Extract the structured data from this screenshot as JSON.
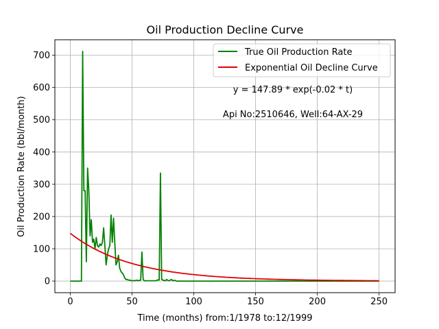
{
  "chart_data": {
    "type": "line",
    "title": "Oil Production Decline Curve",
    "xlabel": "Time (months) from:1/1978 to:12/1999",
    "ylabel": "Oil Production Rate (bbl/month)",
    "xlim": [
      -12.5,
      263
    ],
    "ylim": [
      -36,
      748
    ],
    "xticks": [
      0,
      50,
      100,
      150,
      200,
      250
    ],
    "yticks": [
      0,
      100,
      200,
      300,
      400,
      500,
      600,
      700
    ],
    "grid": true,
    "legend_position": "upper-right",
    "annotations": [
      "y = 147.89 * exp(-0.02 * t)",
      "Api No:2510646, Well:64-AX-29"
    ],
    "series": [
      {
        "name": "True Oil Production Rate",
        "color": "#008000",
        "x": [
          0,
          1,
          2,
          3,
          4,
          5,
          6,
          7,
          8,
          9,
          10,
          11,
          12,
          13,
          14,
          15,
          16,
          17,
          18,
          19,
          20,
          21,
          22,
          23,
          24,
          25,
          26,
          27,
          28,
          29,
          30,
          31,
          32,
          33,
          34,
          35,
          36,
          37,
          38,
          39,
          40,
          41,
          42,
          43,
          44,
          45,
          46,
          47,
          48,
          49,
          50,
          51,
          52,
          53,
          54,
          55,
          56,
          57,
          58,
          59,
          60,
          61,
          62,
          63,
          64,
          65,
          66,
          67,
          68,
          69,
          70,
          71,
          72,
          73,
          74,
          75,
          76,
          77,
          78,
          79,
          80,
          81,
          82,
          83,
          84,
          85,
          86,
          87,
          88,
          89,
          90,
          91,
          92,
          93,
          94,
          95,
          100,
          150,
          200,
          250
        ],
        "y": [
          0,
          0,
          0,
          0,
          0,
          0,
          0,
          0,
          0,
          0,
          712,
          280,
          280,
          60,
          350,
          280,
          140,
          190,
          120,
          130,
          100,
          135,
          110,
          105,
          115,
          110,
          120,
          165,
          110,
          50,
          80,
          100,
          110,
          205,
          120,
          195,
          120,
          50,
          60,
          80,
          40,
          30,
          25,
          20,
          10,
          5,
          5,
          3,
          3,
          2,
          1,
          1,
          2,
          1,
          3,
          1,
          2,
          3,
          90,
          5,
          1,
          1,
          1,
          1,
          1,
          1,
          1,
          1,
          1,
          1,
          2,
          4,
          3,
          335,
          5,
          3,
          2,
          1,
          5,
          2,
          1,
          3,
          5,
          1,
          2,
          2,
          0,
          0,
          0,
          0,
          0,
          0,
          0,
          0,
          0,
          0,
          0,
          0,
          0,
          0
        ]
      },
      {
        "name": "Exponential Oil Decline Curve",
        "color": "#e00000",
        "equation": "y = 147.89 * exp(-0.02 * t)",
        "a": 147.89,
        "b": 0.02,
        "x_range": [
          0,
          250
        ]
      }
    ]
  }
}
